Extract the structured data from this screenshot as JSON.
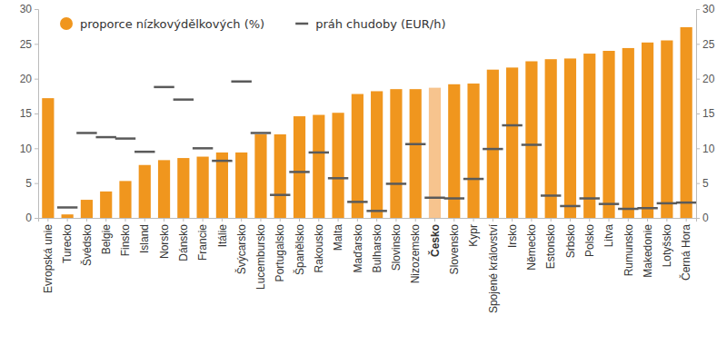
{
  "chart_data": {
    "type": "bar",
    "categories": [
      "Evropská unie",
      "Turecko",
      "Švédsko",
      "Belgie",
      "Finsko",
      "Island",
      "Norsko",
      "Dánsko",
      "Francie",
      "Itálie",
      "Švýcarsko",
      "Lucembursko",
      "Portugalsko",
      "Španělsko",
      "Rakousko",
      "Malta",
      "Maďarsko",
      "Bulharsko",
      "Slovinsko",
      "Nizozemsko",
      "Česko",
      "Slovensko",
      "Kypr",
      "Spojené království",
      "Irsko",
      "Německo",
      "Estonsko",
      "Srbsko",
      "Polsko",
      "Litva",
      "Rumunsko",
      "Makedonie",
      "Lotyšsko",
      "Černá Hora"
    ],
    "series": [
      {
        "name": "proporce nízkovýdělkových (%)",
        "type": "bar",
        "color": "#f0961e",
        "colors": [
          "#f0961e",
          "#f0961e",
          "#f0961e",
          "#f0961e",
          "#f0961e",
          "#f0961e",
          "#f0961e",
          "#f0961e",
          "#f0961e",
          "#f0961e",
          "#f0961e",
          "#f0961e",
          "#f0961e",
          "#f0961e",
          "#f0961e",
          "#f0961e",
          "#f0961e",
          "#f0961e",
          "#f0961e",
          "#f0961e",
          "#f7c48e",
          "#f0961e",
          "#f0961e",
          "#f0961e",
          "#f0961e",
          "#f0961e",
          "#f0961e",
          "#f0961e",
          "#f0961e",
          "#f0961e",
          "#f0961e",
          "#f0961e",
          "#f0961e",
          "#f0961e"
        ],
        "values": [
          17.2,
          0.5,
          2.6,
          3.8,
          5.3,
          7.6,
          8.3,
          8.6,
          8.8,
          9.4,
          9.4,
          12.0,
          12.0,
          14.6,
          14.8,
          15.1,
          17.8,
          18.2,
          18.5,
          18.5,
          18.7,
          19.2,
          19.3,
          21.3,
          21.6,
          22.5,
          22.8,
          22.9,
          23.6,
          24.0,
          24.4,
          25.2,
          25.5,
          27.4
        ]
      },
      {
        "name": "práh chudoby (EUR/h)",
        "type": "scatter",
        "marker": "dash",
        "color": "#5a5a5a",
        "values": [
          null,
          1.5,
          12.2,
          11.6,
          11.4,
          9.5,
          18.8,
          17.0,
          10.0,
          8.2,
          19.6,
          12.2,
          3.3,
          6.6,
          9.4,
          5.7,
          2.3,
          1.0,
          4.9,
          10.6,
          2.9,
          2.8,
          5.6,
          9.9,
          13.3,
          10.5,
          3.2,
          1.7,
          2.8,
          2.0,
          1.3,
          1.4,
          2.1,
          2.2
        ]
      }
    ],
    "ylim": [
      0,
      30
    ],
    "yticks": [
      0,
      5,
      10,
      15,
      20,
      25,
      30
    ],
    "y2lim": [
      0,
      30
    ],
    "y2ticks": [
      0,
      5,
      10,
      15,
      20,
      25,
      30
    ],
    "legend": "top-left",
    "grid": false
  }
}
